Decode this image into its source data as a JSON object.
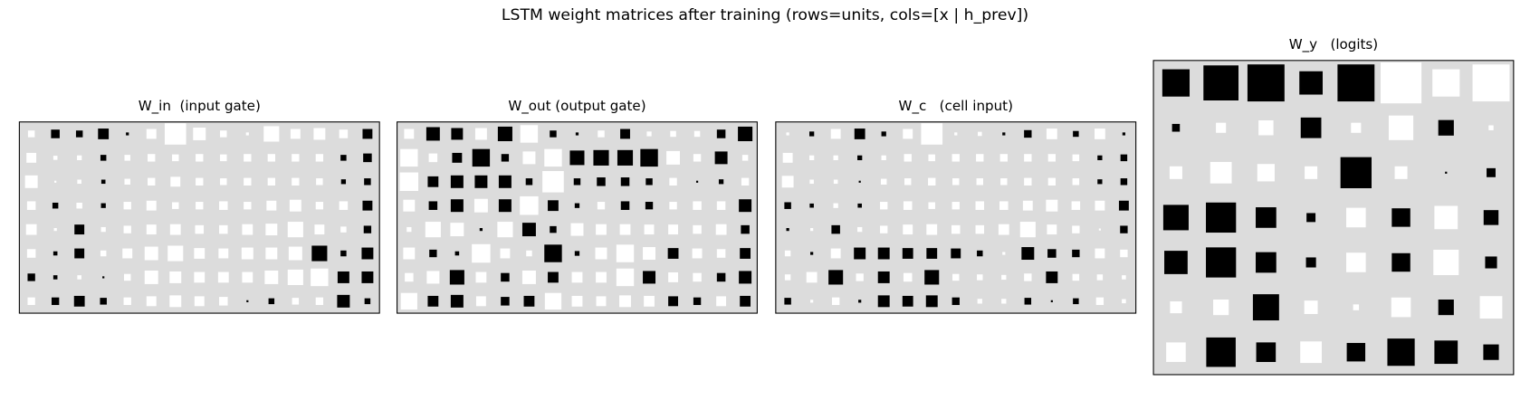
{
  "title": "LSTM weight matrices after training (rows=units, cols=[x | h_prev])",
  "chart_data": [
    {
      "type": "hinton",
      "title": "W_in  (input gate)",
      "positive_color": "#ffffff",
      "negative_color": "#000000",
      "background": "#dcdcdc",
      "values": [
        [
          0.08,
          -0.13,
          -0.08,
          -0.2,
          -0.015,
          0.17,
          0.8,
          0.28,
          0.08,
          0.015,
          0.42,
          0.17,
          0.24,
          0.13,
          -0.17
        ],
        [
          0.17,
          0.03,
          0.04,
          -0.06,
          0.06,
          0.1,
          0.08,
          0.1,
          0.08,
          0.1,
          0.1,
          0.1,
          0.1,
          -0.06,
          -0.13
        ],
        [
          0.28,
          0.007,
          0.03,
          -0.03,
          0.06,
          0.1,
          0.17,
          0.1,
          0.08,
          0.1,
          0.1,
          0.1,
          0.08,
          -0.04,
          -0.08
        ],
        [
          0.13,
          -0.06,
          0.06,
          -0.04,
          0.1,
          0.17,
          0.08,
          0.1,
          0.13,
          0.1,
          0.17,
          0.24,
          0.1,
          0.13,
          -0.17
        ],
        [
          0.2,
          0.015,
          -0.17,
          0.04,
          0.1,
          0.17,
          0.2,
          0.13,
          0.13,
          0.2,
          0.24,
          0.42,
          0.17,
          0.06,
          -0.1
        ],
        [
          0.13,
          -0.03,
          -0.17,
          0.06,
          0.17,
          0.32,
          0.42,
          0.2,
          0.17,
          0.24,
          0.24,
          0.32,
          -0.42,
          -0.06,
          -0.24
        ],
        [
          -0.1,
          -0.03,
          0.03,
          -0.007,
          0.08,
          0.32,
          0.24,
          0.2,
          0.2,
          0.2,
          0.32,
          0.42,
          0.54,
          -0.24,
          -0.24
        ],
        [
          0.1,
          -0.1,
          -0.2,
          -0.08,
          0.1,
          0.17,
          0.24,
          0.17,
          0.13,
          -0.007,
          -0.06,
          0.08,
          0.1,
          -0.28,
          -0.06
        ]
      ]
    },
    {
      "type": "hinton",
      "title": "W_out (output gate)",
      "positive_color": "#ffffff",
      "negative_color": "#000000",
      "background": "#dcdcdc",
      "values": [
        [
          0.17,
          -0.32,
          -0.24,
          0.24,
          -0.37,
          0.54,
          -0.08,
          -0.015,
          0.08,
          -0.17,
          0.04,
          0.06,
          0.06,
          -0.13,
          -0.37
        ],
        [
          0.54,
          0.13,
          -0.17,
          -0.54,
          -0.1,
          0.28,
          0.54,
          -0.37,
          -0.42,
          -0.42,
          -0.54,
          0.32,
          0.1,
          -0.28,
          0.06
        ],
        [
          0.6,
          -0.2,
          -0.28,
          -0.28,
          -0.28,
          -0.08,
          0.8,
          -0.08,
          -0.13,
          -0.13,
          -0.08,
          0.1,
          -0.007,
          -0.04,
          0.1
        ],
        [
          0.24,
          -0.13,
          -0.28,
          0.32,
          -0.28,
          0.6,
          -0.2,
          -0.04,
          0.1,
          -0.13,
          -0.1,
          0.1,
          0.13,
          0.13,
          -0.28
        ],
        [
          0.04,
          0.42,
          0.32,
          -0.015,
          0.42,
          -0.32,
          -0.08,
          0.28,
          0.2,
          0.2,
          0.17,
          0.17,
          0.13,
          0.2,
          -0.13
        ],
        [
          0.24,
          -0.1,
          -0.03,
          0.6,
          0.17,
          0.06,
          -0.54,
          -0.04,
          0.24,
          0.54,
          0.28,
          -0.2,
          0.17,
          0.13,
          -0.2
        ],
        [
          0.13,
          0.28,
          -0.37,
          0.2,
          -0.13,
          0.32,
          -0.2,
          0.2,
          0.2,
          0.54,
          -0.28,
          0.17,
          0.13,
          -0.13,
          -0.28
        ],
        [
          0.48,
          -0.2,
          -0.28,
          0.17,
          -0.13,
          -0.2,
          0.48,
          0.2,
          0.17,
          0.24,
          0.2,
          -0.17,
          -0.1,
          0.17,
          -0.2
        ]
      ]
    },
    {
      "type": "hinton",
      "title": "W_c   (cell input)",
      "positive_color": "#ffffff",
      "negative_color": "#000000",
      "background": "#dcdcdc",
      "values": [
        [
          0.015,
          -0.04,
          0.17,
          -0.2,
          -0.04,
          0.17,
          0.8,
          0.015,
          0.03,
          -0.015,
          -0.1,
          0.2,
          -0.06,
          0.2,
          -0.015
        ],
        [
          0.17,
          0.04,
          0.04,
          -0.04,
          0.04,
          0.1,
          0.08,
          0.1,
          0.1,
          0.1,
          0.1,
          0.1,
          0.08,
          -0.04,
          -0.08
        ],
        [
          0.24,
          0.03,
          0.03,
          -0.007,
          0.06,
          0.08,
          0.1,
          0.08,
          0.08,
          0.08,
          0.1,
          0.1,
          0.08,
          -0.04,
          -0.08
        ],
        [
          -0.08,
          -0.03,
          0.04,
          -0.03,
          0.1,
          0.13,
          0.08,
          0.1,
          0.13,
          0.13,
          0.17,
          0.24,
          0.13,
          0.17,
          -0.17
        ],
        [
          -0.015,
          0.015,
          -0.13,
          0.04,
          0.1,
          0.17,
          0.2,
          0.13,
          0.13,
          0.2,
          0.42,
          0.17,
          0.1,
          0.007,
          -0.1
        ],
        [
          0.06,
          -0.015,
          0.17,
          -0.24,
          -0.24,
          -0.2,
          -0.2,
          -0.17,
          -0.06,
          0.015,
          -0.28,
          -0.13,
          -0.1,
          0.17,
          0.1
        ],
        [
          0.06,
          0.2,
          -0.37,
          0.1,
          -0.24,
          0.13,
          -0.37,
          0.08,
          0.06,
          0.04,
          0.1,
          -0.24,
          0.08,
          0.06,
          0.03
        ],
        [
          -0.08,
          0.015,
          0.1,
          -0.015,
          -0.24,
          -0.2,
          -0.24,
          -0.1,
          0.04,
          0.04,
          -0.08,
          -0.007,
          -0.06,
          0.1,
          0.03
        ]
      ]
    },
    {
      "type": "hinton",
      "title": "W_y   (logits)",
      "positive_color": "#ffffff",
      "negative_color": "#000000",
      "background": "#dcdcdc",
      "values": [
        [
          -0.37,
          -0.61,
          -0.68,
          -0.27,
          -0.68,
          0.83,
          0.37,
          0.68
        ],
        [
          -0.03,
          0.05,
          0.11,
          -0.21,
          0.05,
          0.3,
          -0.12,
          0.012
        ],
        [
          0.08,
          0.23,
          0.15,
          0.08,
          -0.48,
          0.08,
          -0.002,
          -0.04
        ],
        [
          -0.32,
          -0.45,
          -0.21,
          -0.04,
          0.19,
          -0.17,
          0.27,
          -0.11
        ],
        [
          -0.27,
          -0.45,
          -0.21,
          -0.05,
          0.19,
          -0.17,
          0.32,
          -0.07
        ],
        [
          0.07,
          0.12,
          -0.34,
          0.09,
          0.017,
          0.19,
          -0.12,
          0.25
        ],
        [
          0.19,
          -0.43,
          -0.19,
          0.23,
          -0.17,
          -0.37,
          -0.27,
          -0.12
        ]
      ]
    }
  ]
}
